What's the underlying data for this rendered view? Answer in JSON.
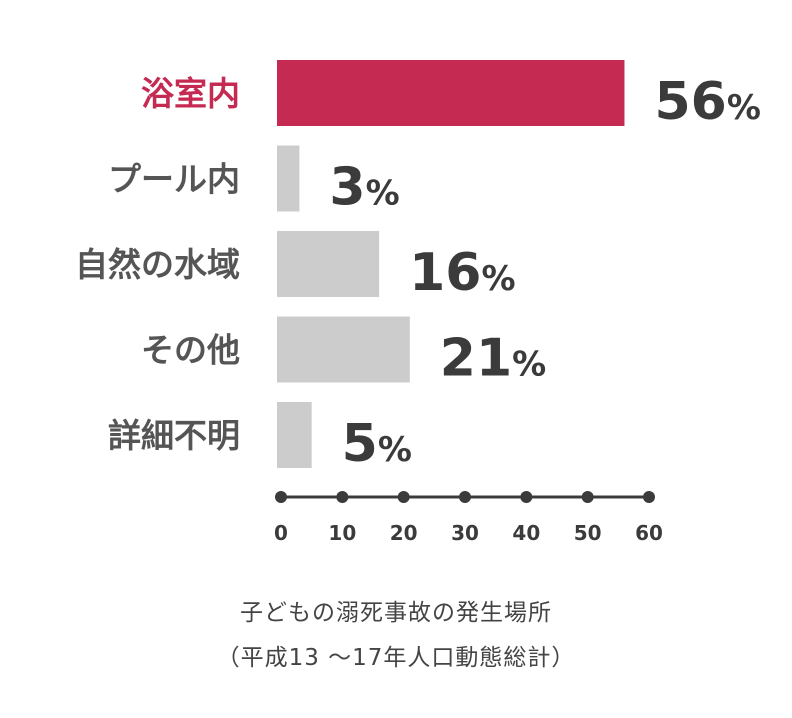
{
  "chart_data": {
    "type": "bar",
    "orientation": "horizontal",
    "categories": [
      "浴室内",
      "プール内",
      "自然の水域",
      "その他",
      "詳細不明"
    ],
    "values": [
      56,
      3,
      16,
      21,
      5
    ],
    "value_suffix": "%",
    "highlight_index": 0,
    "xlim": [
      0,
      60
    ],
    "xticks": [
      0,
      10,
      20,
      30,
      40,
      50,
      60
    ],
    "grid": false,
    "legend": "none",
    "colors": {
      "highlight": "#c42a52",
      "bar": "#cccccc",
      "axis": "#3b3b3b",
      "value_text": "#3b3b3b",
      "label_text": "#555555"
    }
  },
  "caption": {
    "line1": "子どもの溺死事故の発生場所",
    "line2": "（平成13 〜17年人口動態総計）"
  }
}
